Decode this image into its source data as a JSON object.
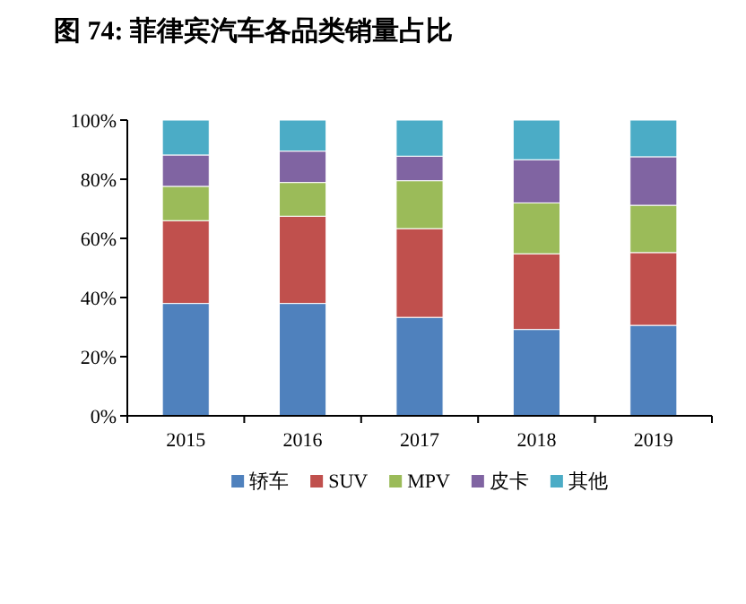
{
  "chart_data": {
    "type": "bar",
    "title": "图 74: 菲律宾汽车各品类销量占比",
    "stacked": true,
    "categories": [
      "2015",
      "2016",
      "2017",
      "2018",
      "2019"
    ],
    "series": [
      {
        "name": "轿车",
        "color": "#4f81bd",
        "values": [
          38,
          38,
          33.3,
          29.2,
          30.6
        ]
      },
      {
        "name": "SUV",
        "color": "#c0504d",
        "values": [
          28,
          29.5,
          30,
          25.6,
          24.6
        ]
      },
      {
        "name": "MPV",
        "color": "#9bbb59",
        "values": [
          11.6,
          11.4,
          16.2,
          17.2,
          16
        ]
      },
      {
        "name": "皮卡",
        "color": "#8064a2",
        "values": [
          10.6,
          10.6,
          8.3,
          14.6,
          16.4
        ]
      },
      {
        "name": "其他",
        "color": "#4bacc6",
        "values": [
          11.8,
          10.5,
          12.2,
          13.4,
          12.4
        ]
      }
    ],
    "ylim": [
      0,
      100
    ],
    "yticks": [
      {
        "value": 0,
        "label": "0%"
      },
      {
        "value": 20,
        "label": "20%"
      },
      {
        "value": 40,
        "label": "40%"
      },
      {
        "value": 60,
        "label": "60%"
      },
      {
        "value": 80,
        "label": "80%"
      },
      {
        "value": 100,
        "label": "100%"
      }
    ],
    "legend": "bottom"
  }
}
